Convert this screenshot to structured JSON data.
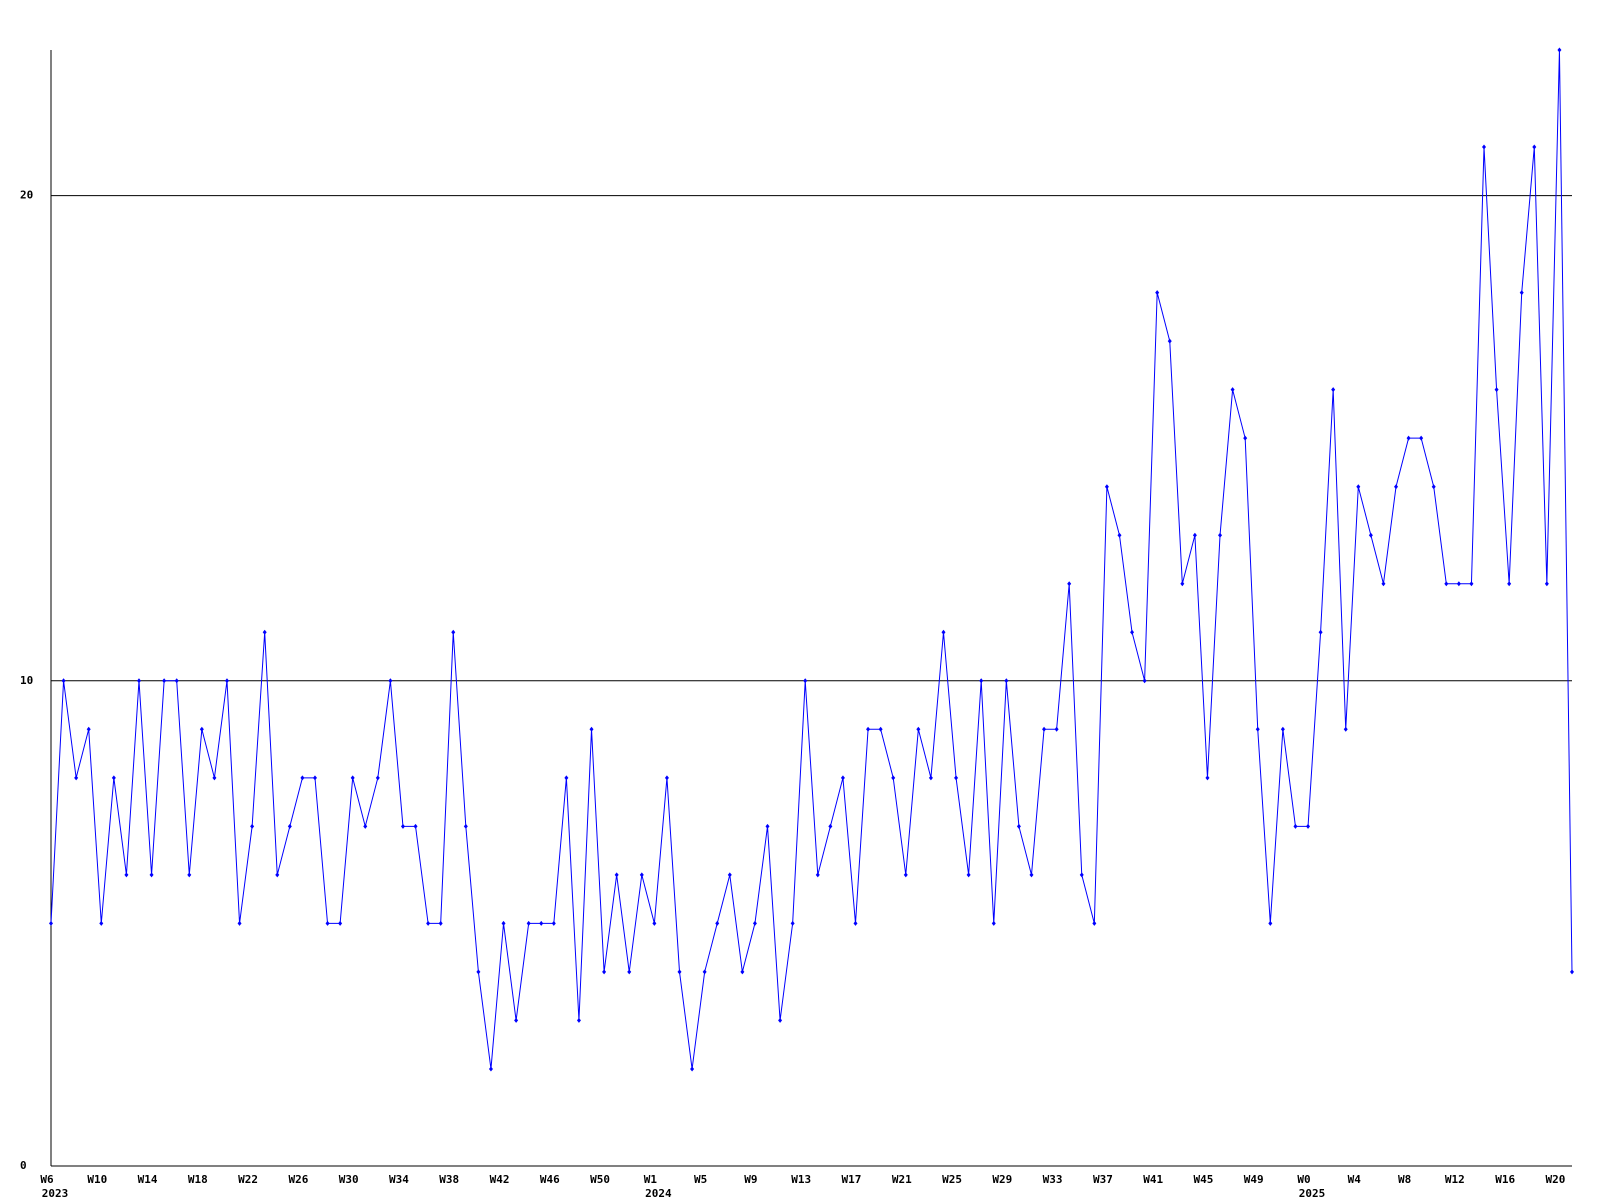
{
  "chart_data": {
    "type": "line",
    "x": [
      0,
      1,
      2,
      3,
      4,
      5,
      6,
      7,
      8,
      9,
      10,
      11,
      12,
      13,
      14,
      15,
      16,
      17,
      18,
      19,
      20,
      21,
      22,
      23,
      24,
      25,
      26,
      27,
      28,
      29,
      30,
      31,
      32,
      33,
      34,
      35,
      36,
      37,
      38,
      39,
      40,
      41,
      42,
      43,
      44,
      45,
      46,
      47,
      48,
      49,
      50,
      51,
      52,
      53,
      54,
      55,
      56,
      57,
      58,
      59,
      60,
      61,
      62,
      63,
      64,
      65,
      66,
      67,
      68,
      69,
      70,
      71,
      72,
      73,
      74,
      75,
      76,
      77,
      78,
      79,
      80,
      81,
      82,
      83,
      84,
      85,
      86,
      87,
      88,
      89,
      90,
      91,
      92,
      93,
      94,
      95,
      96,
      97,
      98,
      99,
      100,
      101,
      102,
      103,
      104,
      105,
      106,
      107,
      108,
      109,
      110,
      111,
      112,
      113,
      114,
      115,
      116,
      117,
      118,
      119,
      120,
      121
    ],
    "series": [
      {
        "color": "#0000ff",
        "values": [
          5,
          10,
          8,
          9,
          5,
          8,
          6,
          10,
          6,
          10,
          10,
          6,
          9,
          8,
          10,
          5,
          7,
          11,
          6,
          7,
          8,
          8,
          5,
          5,
          8,
          7,
          8,
          10,
          7,
          7,
          5,
          5,
          11,
          7,
          4,
          2,
          5,
          3,
          5,
          5,
          5,
          8,
          3,
          9,
          4,
          6,
          4,
          6,
          5,
          8,
          4,
          2,
          4,
          5,
          6,
          4,
          5,
          7,
          3,
          5,
          10,
          6,
          7,
          8,
          5,
          9,
          9,
          8,
          6,
          9,
          8,
          11,
          8,
          6,
          10,
          5,
          10,
          7,
          6,
          9,
          9,
          12,
          6,
          5,
          14,
          13,
          11,
          10,
          18,
          17,
          12,
          13,
          8,
          13,
          16,
          15,
          9,
          5,
          9,
          7,
          7,
          11,
          16,
          9,
          14,
          13,
          12,
          14,
          15,
          15,
          14,
          12,
          12,
          12,
          21,
          16,
          12,
          18,
          21,
          12,
          23,
          4
        ]
      }
    ],
    "xlim": [
      0,
      121
    ],
    "ylim": [
      0,
      23
    ],
    "yticks": [
      0,
      10,
      20
    ],
    "grid": true,
    "xticks": [
      {
        "value": 0,
        "label": "W6"
      },
      {
        "value": 4,
        "label": "W10"
      },
      {
        "value": 8,
        "label": "W14"
      },
      {
        "value": 12,
        "label": "W18"
      },
      {
        "value": 16,
        "label": "W22"
      },
      {
        "value": 20,
        "label": "W26"
      },
      {
        "value": 24,
        "label": "W30"
      },
      {
        "value": 28,
        "label": "W34"
      },
      {
        "value": 32,
        "label": "W38"
      },
      {
        "value": 36,
        "label": "W42"
      },
      {
        "value": 40,
        "label": "W46"
      },
      {
        "value": 44,
        "label": "W50"
      },
      {
        "value": 48,
        "label": "W1"
      },
      {
        "value": 52,
        "label": "W5"
      },
      {
        "value": 56,
        "label": "W9"
      },
      {
        "value": 60,
        "label": "W13"
      },
      {
        "value": 64,
        "label": "W17"
      },
      {
        "value": 68,
        "label": "W21"
      },
      {
        "value": 72,
        "label": "W25"
      },
      {
        "value": 76,
        "label": "W29"
      },
      {
        "value": 80,
        "label": "W33"
      },
      {
        "value": 84,
        "label": "W37"
      },
      {
        "value": 88,
        "label": "W41"
      },
      {
        "value": 92,
        "label": "W45"
      },
      {
        "value": 96,
        "label": "W49"
      },
      {
        "value": 100,
        "label": "W0"
      },
      {
        "value": 104,
        "label": "W4"
      },
      {
        "value": 108,
        "label": "W8"
      },
      {
        "value": 112,
        "label": "W12"
      },
      {
        "value": 116,
        "label": "W16"
      },
      {
        "value": 120,
        "label": "W20"
      }
    ],
    "year_ticks": [
      {
        "value": 0,
        "label": "2023"
      },
      {
        "value": 48,
        "label": "2024"
      },
      {
        "value": 100,
        "label": "2025"
      }
    ]
  }
}
